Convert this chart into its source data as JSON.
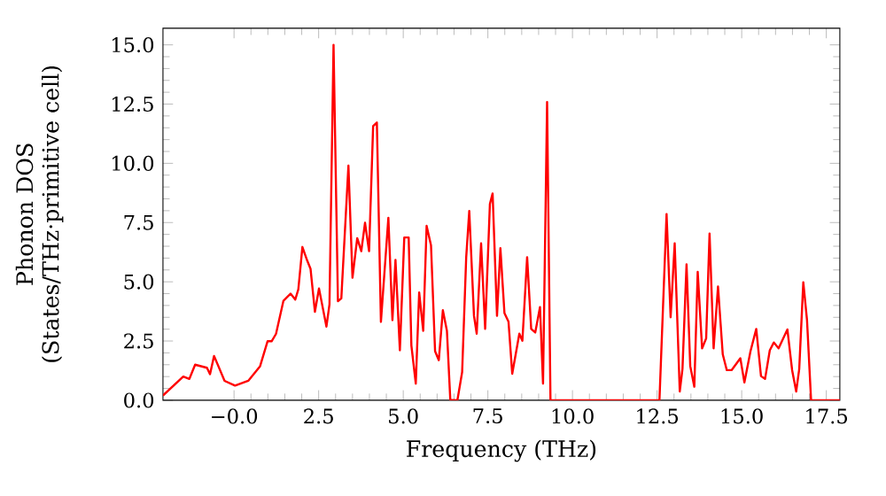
{
  "chart_data": {
    "type": "line",
    "xlabel": "Frequency (THz)",
    "ylabel": "Phonon DOS\n(States/THz·primitive cell)",
    "xlim": [
      -2.1,
      17.9
    ],
    "ylim": [
      0,
      15.7
    ],
    "xticks": [
      {
        "value": 0,
        "label": "−0.0"
      },
      2.5,
      {
        "value": 5,
        "label": "5.0"
      },
      7.5,
      {
        "value": 10,
        "label": "10.0"
      },
      12.5,
      {
        "value": 15,
        "label": "15.0"
      },
      17.5
    ],
    "yticks": [
      {
        "value": 0,
        "label": "0.0"
      },
      2.5,
      {
        "value": 5,
        "label": "5.0"
      },
      7.5,
      {
        "value": 10,
        "label": "10.0"
      },
      12.5,
      {
        "value": 15,
        "label": "15.0"
      }
    ],
    "grid": false,
    "marker": "none",
    "line_style": "solid",
    "series": [
      {
        "color": "#ff0000",
        "x": [
          -2.1,
          -1.5,
          -1.32,
          -1.15,
          -0.8,
          -0.71,
          -0.59,
          -0.28,
          0.03,
          0.42,
          0.77,
          0.99,
          1.11,
          1.24,
          1.46,
          1.67,
          1.81,
          1.9,
          2.02,
          2.16,
          2.26,
          2.39,
          2.51,
          2.73,
          2.82,
          2.94,
          3.07,
          3.17,
          3.38,
          3.5,
          3.64,
          3.76,
          3.87,
          3.99,
          4.11,
          4.22,
          4.34,
          4.56,
          4.68,
          4.77,
          4.9,
          5.03,
          5.16,
          5.24,
          5.37,
          5.47,
          5.59,
          5.69,
          5.82,
          5.94,
          6.05,
          6.17,
          6.29,
          6.39,
          6.6,
          6.74,
          6.86,
          6.95,
          7.09,
          7.17,
          7.3,
          7.42,
          7.56,
          7.64,
          7.77,
          7.87,
          7.99,
          8.11,
          8.22,
          8.43,
          8.52,
          8.66,
          8.78,
          8.9,
          9.04,
          9.13,
          9.25,
          9.35,
          12.57,
          12.78,
          12.9,
          13.02,
          13.17,
          13.25,
          13.37,
          13.48,
          13.6,
          13.7,
          13.83,
          13.95,
          14.05,
          14.17,
          14.3,
          14.44,
          14.56,
          14.7,
          14.96,
          15.08,
          15.26,
          15.43,
          15.57,
          15.69,
          15.83,
          15.95,
          16.09,
          16.35,
          16.49,
          16.61,
          16.7,
          16.82,
          16.93,
          17.05,
          17.9
        ],
        "values": [
          0.2,
          1.0,
          0.9,
          1.5,
          1.37,
          1.1,
          1.87,
          0.82,
          0.62,
          0.82,
          1.44,
          2.49,
          2.49,
          2.8,
          4.2,
          4.5,
          4.25,
          4.68,
          6.47,
          5.9,
          5.55,
          3.73,
          4.72,
          3.11,
          4.05,
          15.0,
          4.18,
          4.3,
          9.9,
          5.17,
          6.84,
          6.29,
          7.49,
          6.29,
          11.57,
          11.72,
          3.31,
          7.7,
          3.38,
          5.92,
          2.11,
          6.87,
          6.87,
          2.31,
          0.7,
          4.55,
          2.93,
          7.36,
          6.54,
          2.07,
          1.69,
          3.8,
          2.93,
          0.02,
          0.0,
          1.19,
          6.04,
          7.99,
          3.56,
          2.81,
          6.62,
          3.01,
          8.28,
          8.73,
          3.56,
          6.42,
          3.68,
          3.31,
          1.12,
          2.81,
          2.51,
          6.04,
          3.01,
          2.86,
          3.93,
          0.7,
          12.59,
          0.0,
          0.0,
          7.86,
          3.5,
          6.62,
          0.37,
          1.32,
          5.74,
          1.44,
          0.57,
          5.42,
          2.19,
          2.61,
          7.04,
          2.19,
          4.8,
          1.94,
          1.27,
          1.27,
          1.77,
          0.75,
          2.07,
          3.01,
          1.02,
          0.9,
          2.11,
          2.44,
          2.19,
          2.99,
          1.27,
          0.37,
          1.32,
          4.98,
          3.38,
          0.0,
          0.0
        ]
      }
    ]
  }
}
